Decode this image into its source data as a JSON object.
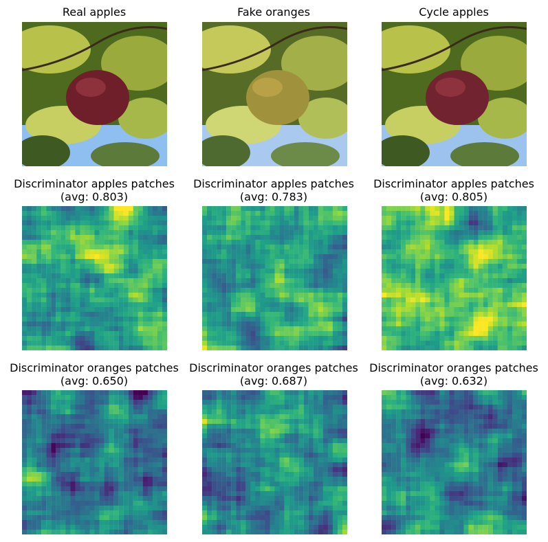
{
  "figure": {
    "row1": {
      "titles": [
        "Real apples",
        "Fake oranges",
        "Cycle apples"
      ]
    },
    "row2": {
      "titles": [
        [
          "Discriminator apples patches",
          "(avg: 0.803)"
        ],
        [
          "Discriminator apples patches",
          "(avg: 0.783)"
        ],
        [
          "Discriminator apples patches",
          "(avg: 0.805)"
        ]
      ]
    },
    "row3": {
      "titles": [
        [
          "Discriminator oranges patches",
          "(avg: 0.650)"
        ],
        [
          "Discriminator oranges patches",
          "(avg: 0.687)"
        ],
        [
          "Discriminator oranges patches",
          "(avg: 0.632)"
        ]
      ]
    },
    "colormap": "viridis",
    "photo_colors": {
      "sky": "#7fb2e6",
      "foliage": "#6f8a2a",
      "fruit_real": "#7a2430",
      "fruit_fake": "#a08a3a"
    }
  }
}
